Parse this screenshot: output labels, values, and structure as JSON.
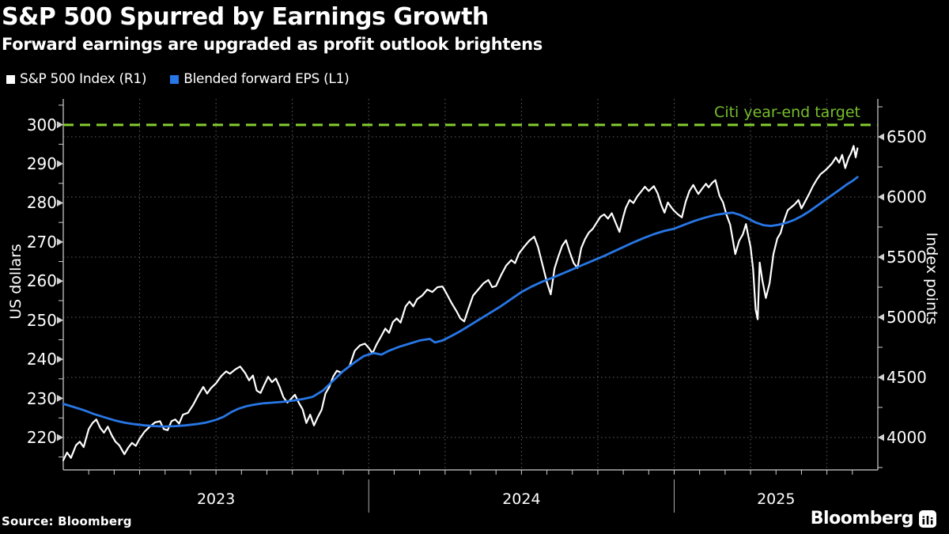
{
  "header": {
    "title": "S&P 500 Spurred by Earnings Growth",
    "subtitle": "Forward earnings are upgraded as profit outlook brightens"
  },
  "legend": {
    "items": [
      {
        "label": "S&P 500 Index (R1)",
        "color": "#FFFFFF"
      },
      {
        "label": "Blended forward EPS (L1)",
        "color": "#2877E6"
      }
    ]
  },
  "source": {
    "text": "Source: Bloomberg"
  },
  "branding": {
    "logo_text": "Bloomberg"
  },
  "chart_data": {
    "type": "line",
    "background": "#000000",
    "grid_color": "#606060",
    "axis_color": "#d0d0d0",
    "x_axis": {
      "unit": "months since Jan 2023",
      "range": [
        0,
        32
      ],
      "minor_tick_step": 1,
      "grid_step": 3,
      "year_labels": [
        {
          "label": "2023",
          "t": 6
        },
        {
          "label": "2024",
          "t": 18
        },
        {
          "label": "2025",
          "t": 28
        }
      ],
      "separators": [
        12,
        24
      ]
    },
    "left_axis": {
      "title": "US dollars",
      "range": [
        211.7,
        306.6
      ],
      "tick_labels": [
        300,
        290,
        280,
        270,
        260,
        250,
        240,
        230,
        220
      ],
      "minor_step": 5
    },
    "right_axis": {
      "title": "Index points",
      "range": [
        3730,
        6816
      ],
      "tick_labels": [
        6500,
        6000,
        5500,
        5000,
        4500,
        4000
      ],
      "minor_step": 250
    },
    "target_line": {
      "label": "Citi year-end target",
      "value": 6600,
      "axis": "right",
      "line_color": "#84CC2F",
      "label_color": "#76BE2B",
      "style": "dashed"
    },
    "series": [
      {
        "name": "S&P 500 Index (R1)",
        "axis": "right",
        "color": "#FFFFFF",
        "width": 2.2,
        "points": [
          [
            0,
            3810
          ],
          [
            0.15,
            3875
          ],
          [
            0.3,
            3830
          ],
          [
            0.5,
            3935
          ],
          [
            0.65,
            3965
          ],
          [
            0.8,
            3920
          ],
          [
            1.0,
            4070
          ],
          [
            1.15,
            4120
          ],
          [
            1.3,
            4150
          ],
          [
            1.45,
            4080
          ],
          [
            1.6,
            4040
          ],
          [
            1.75,
            4090
          ],
          [
            1.9,
            4020
          ],
          [
            2.05,
            3965
          ],
          [
            2.2,
            3935
          ],
          [
            2.4,
            3860
          ],
          [
            2.55,
            3915
          ],
          [
            2.7,
            3955
          ],
          [
            2.85,
            3930
          ],
          [
            3.0,
            3990
          ],
          [
            3.2,
            4050
          ],
          [
            3.4,
            4090
          ],
          [
            3.6,
            4125
          ],
          [
            3.8,
            4135
          ],
          [
            3.95,
            4070
          ],
          [
            4.1,
            4060
          ],
          [
            4.25,
            4135
          ],
          [
            4.4,
            4150
          ],
          [
            4.55,
            4115
          ],
          [
            4.7,
            4190
          ],
          [
            4.9,
            4205
          ],
          [
            5.1,
            4270
          ],
          [
            5.3,
            4350
          ],
          [
            5.5,
            4420
          ],
          [
            5.65,
            4365
          ],
          [
            5.8,
            4410
          ],
          [
            6.0,
            4450
          ],
          [
            6.2,
            4510
          ],
          [
            6.4,
            4550
          ],
          [
            6.55,
            4530
          ],
          [
            6.75,
            4565
          ],
          [
            6.95,
            4590
          ],
          [
            7.15,
            4535
          ],
          [
            7.3,
            4475
          ],
          [
            7.45,
            4515
          ],
          [
            7.6,
            4390
          ],
          [
            7.75,
            4370
          ],
          [
            7.9,
            4440
          ],
          [
            8.05,
            4505
          ],
          [
            8.2,
            4460
          ],
          [
            8.35,
            4490
          ],
          [
            8.5,
            4420
          ],
          [
            8.65,
            4335
          ],
          [
            8.8,
            4290
          ],
          [
            8.95,
            4320
          ],
          [
            9.1,
            4355
          ],
          [
            9.25,
            4290
          ],
          [
            9.4,
            4235
          ],
          [
            9.55,
            4120
          ],
          [
            9.7,
            4190
          ],
          [
            9.85,
            4100
          ],
          [
            10.0,
            4170
          ],
          [
            10.15,
            4230
          ],
          [
            10.3,
            4365
          ],
          [
            10.45,
            4420
          ],
          [
            10.6,
            4505
          ],
          [
            10.75,
            4555
          ],
          [
            10.9,
            4540
          ],
          [
            11.05,
            4560
          ],
          [
            11.25,
            4595
          ],
          [
            11.45,
            4720
          ],
          [
            11.65,
            4765
          ],
          [
            11.85,
            4780
          ],
          [
            12.0,
            4745
          ],
          [
            12.15,
            4700
          ],
          [
            12.3,
            4770
          ],
          [
            12.5,
            4845
          ],
          [
            12.65,
            4905
          ],
          [
            12.8,
            4870
          ],
          [
            12.95,
            4960
          ],
          [
            13.1,
            4990
          ],
          [
            13.25,
            4955
          ],
          [
            13.45,
            5090
          ],
          [
            13.6,
            5130
          ],
          [
            13.75,
            5090
          ],
          [
            13.9,
            5150
          ],
          [
            14.1,
            5180
          ],
          [
            14.3,
            5230
          ],
          [
            14.5,
            5210
          ],
          [
            14.7,
            5250
          ],
          [
            14.9,
            5255
          ],
          [
            15.05,
            5200
          ],
          [
            15.25,
            5120
          ],
          [
            15.45,
            5050
          ],
          [
            15.6,
            4990
          ],
          [
            15.75,
            4965
          ],
          [
            15.9,
            5060
          ],
          [
            16.1,
            5180
          ],
          [
            16.3,
            5230
          ],
          [
            16.5,
            5280
          ],
          [
            16.7,
            5310
          ],
          [
            16.85,
            5250
          ],
          [
            17.0,
            5260
          ],
          [
            17.2,
            5350
          ],
          [
            17.4,
            5430
          ],
          [
            17.6,
            5475
          ],
          [
            17.75,
            5450
          ],
          [
            17.9,
            5530
          ],
          [
            18.1,
            5585
          ],
          [
            18.3,
            5635
          ],
          [
            18.5,
            5670
          ],
          [
            18.65,
            5585
          ],
          [
            18.8,
            5460
          ],
          [
            19.0,
            5290
          ],
          [
            19.15,
            5190
          ],
          [
            19.3,
            5405
          ],
          [
            19.45,
            5505
          ],
          [
            19.6,
            5595
          ],
          [
            19.75,
            5640
          ],
          [
            19.9,
            5540
          ],
          [
            20.05,
            5450
          ],
          [
            20.2,
            5410
          ],
          [
            20.35,
            5575
          ],
          [
            20.5,
            5650
          ],
          [
            20.65,
            5705
          ],
          [
            20.8,
            5735
          ],
          [
            20.95,
            5785
          ],
          [
            21.1,
            5835
          ],
          [
            21.25,
            5855
          ],
          [
            21.4,
            5820
          ],
          [
            21.55,
            5865
          ],
          [
            21.7,
            5785
          ],
          [
            21.85,
            5710
          ],
          [
            22.0,
            5835
          ],
          [
            22.1,
            5910
          ],
          [
            22.25,
            5975
          ],
          [
            22.4,
            5950
          ],
          [
            22.55,
            6005
          ],
          [
            22.7,
            6045
          ],
          [
            22.85,
            6085
          ],
          [
            23.0,
            6050
          ],
          [
            23.2,
            6090
          ],
          [
            23.35,
            6030
          ],
          [
            23.5,
            5930
          ],
          [
            23.62,
            5870
          ],
          [
            23.75,
            5955
          ],
          [
            23.9,
            5910
          ],
          [
            24.0,
            5885
          ],
          [
            24.15,
            5855
          ],
          [
            24.3,
            5830
          ],
          [
            24.45,
            5960
          ],
          [
            24.6,
            6050
          ],
          [
            24.75,
            6100
          ],
          [
            24.85,
            6060
          ],
          [
            24.95,
            6025
          ],
          [
            25.1,
            6070
          ],
          [
            25.25,
            6110
          ],
          [
            25.35,
            6080
          ],
          [
            25.5,
            6120
          ],
          [
            25.62,
            6140
          ],
          [
            25.78,
            6010
          ],
          [
            25.92,
            5955
          ],
          [
            26.05,
            5855
          ],
          [
            26.2,
            5770
          ],
          [
            26.4,
            5525
          ],
          [
            26.55,
            5635
          ],
          [
            26.7,
            5690
          ],
          [
            26.82,
            5775
          ],
          [
            26.92,
            5665
          ],
          [
            27.0,
            5585
          ],
          [
            27.1,
            5400
          ],
          [
            27.2,
            5065
          ],
          [
            27.28,
            4983
          ],
          [
            27.36,
            5455
          ],
          [
            27.46,
            5310
          ],
          [
            27.6,
            5160
          ],
          [
            27.75,
            5285
          ],
          [
            27.9,
            5525
          ],
          [
            28.05,
            5655
          ],
          [
            28.18,
            5700
          ],
          [
            28.32,
            5805
          ],
          [
            28.46,
            5890
          ],
          [
            28.6,
            5915
          ],
          [
            28.74,
            5940
          ],
          [
            28.88,
            5975
          ],
          [
            29.0,
            5905
          ],
          [
            29.15,
            5965
          ],
          [
            29.3,
            6025
          ],
          [
            29.45,
            6090
          ],
          [
            29.6,
            6145
          ],
          [
            29.75,
            6190
          ],
          [
            29.9,
            6215
          ],
          [
            30.05,
            6245
          ],
          [
            30.2,
            6280
          ],
          [
            30.35,
            6330
          ],
          [
            30.48,
            6285
          ],
          [
            30.6,
            6350
          ],
          [
            30.72,
            6240
          ],
          [
            30.85,
            6325
          ],
          [
            30.95,
            6365
          ],
          [
            31.05,
            6425
          ],
          [
            31.13,
            6330
          ],
          [
            31.2,
            6405
          ]
        ]
      },
      {
        "name": "Blended forward EPS (L1)",
        "axis": "left",
        "color": "#2877E6",
        "width": 2.8,
        "points": [
          [
            0,
            228.6
          ],
          [
            0.4,
            227.8
          ],
          [
            0.8,
            227.0
          ],
          [
            1.2,
            226.0
          ],
          [
            1.6,
            225.2
          ],
          [
            2.0,
            224.4
          ],
          [
            2.4,
            223.8
          ],
          [
            2.8,
            223.4
          ],
          [
            3.2,
            223.1
          ],
          [
            3.6,
            222.9
          ],
          [
            4.0,
            222.8
          ],
          [
            4.4,
            222.9
          ],
          [
            4.8,
            223.1
          ],
          [
            5.2,
            223.4
          ],
          [
            5.6,
            223.8
          ],
          [
            6.0,
            224.5
          ],
          [
            6.3,
            225.3
          ],
          [
            6.6,
            226.5
          ],
          [
            6.9,
            227.4
          ],
          [
            7.2,
            228.0
          ],
          [
            7.5,
            228.4
          ],
          [
            7.8,
            228.7
          ],
          [
            8.2,
            228.9
          ],
          [
            8.6,
            229.1
          ],
          [
            9.0,
            229.4
          ],
          [
            9.4,
            229.8
          ],
          [
            9.8,
            230.4
          ],
          [
            10.2,
            232.0
          ],
          [
            10.6,
            234.5
          ],
          [
            11.0,
            237.0
          ],
          [
            11.4,
            239.0
          ],
          [
            11.8,
            240.8
          ],
          [
            12.2,
            241.6
          ],
          [
            12.5,
            241.2
          ],
          [
            12.8,
            242.2
          ],
          [
            13.2,
            243.2
          ],
          [
            13.6,
            244.0
          ],
          [
            14.0,
            244.8
          ],
          [
            14.4,
            245.2
          ],
          [
            14.6,
            244.3
          ],
          [
            14.9,
            244.8
          ],
          [
            15.2,
            245.8
          ],
          [
            15.6,
            247.2
          ],
          [
            16.0,
            248.8
          ],
          [
            16.4,
            250.4
          ],
          [
            16.8,
            252.0
          ],
          [
            17.2,
            253.6
          ],
          [
            17.6,
            255.4
          ],
          [
            18.0,
            257.2
          ],
          [
            18.4,
            258.6
          ],
          [
            18.8,
            259.8
          ],
          [
            19.2,
            260.8
          ],
          [
            19.6,
            261.9
          ],
          [
            20.0,
            263.0
          ],
          [
            20.4,
            264.1
          ],
          [
            20.8,
            265.2
          ],
          [
            21.2,
            266.3
          ],
          [
            21.6,
            267.5
          ],
          [
            22.0,
            268.7
          ],
          [
            22.4,
            269.9
          ],
          [
            22.8,
            271.0
          ],
          [
            23.2,
            272.0
          ],
          [
            23.6,
            272.8
          ],
          [
            24.0,
            273.4
          ],
          [
            24.4,
            274.4
          ],
          [
            24.8,
            275.4
          ],
          [
            25.2,
            276.2
          ],
          [
            25.6,
            276.9
          ],
          [
            26.0,
            277.3
          ],
          [
            26.3,
            277.5
          ],
          [
            26.6,
            276.9
          ],
          [
            26.9,
            276.0
          ],
          [
            27.2,
            275.0
          ],
          [
            27.5,
            274.3
          ],
          [
            27.8,
            274.1
          ],
          [
            28.1,
            274.4
          ],
          [
            28.4,
            274.9
          ],
          [
            28.7,
            275.6
          ],
          [
            29.0,
            276.6
          ],
          [
            29.3,
            277.8
          ],
          [
            29.6,
            279.2
          ],
          [
            29.9,
            280.6
          ],
          [
            30.2,
            282.0
          ],
          [
            30.5,
            283.4
          ],
          [
            30.8,
            284.8
          ],
          [
            31.0,
            285.6
          ],
          [
            31.2,
            286.6
          ]
        ]
      }
    ]
  }
}
